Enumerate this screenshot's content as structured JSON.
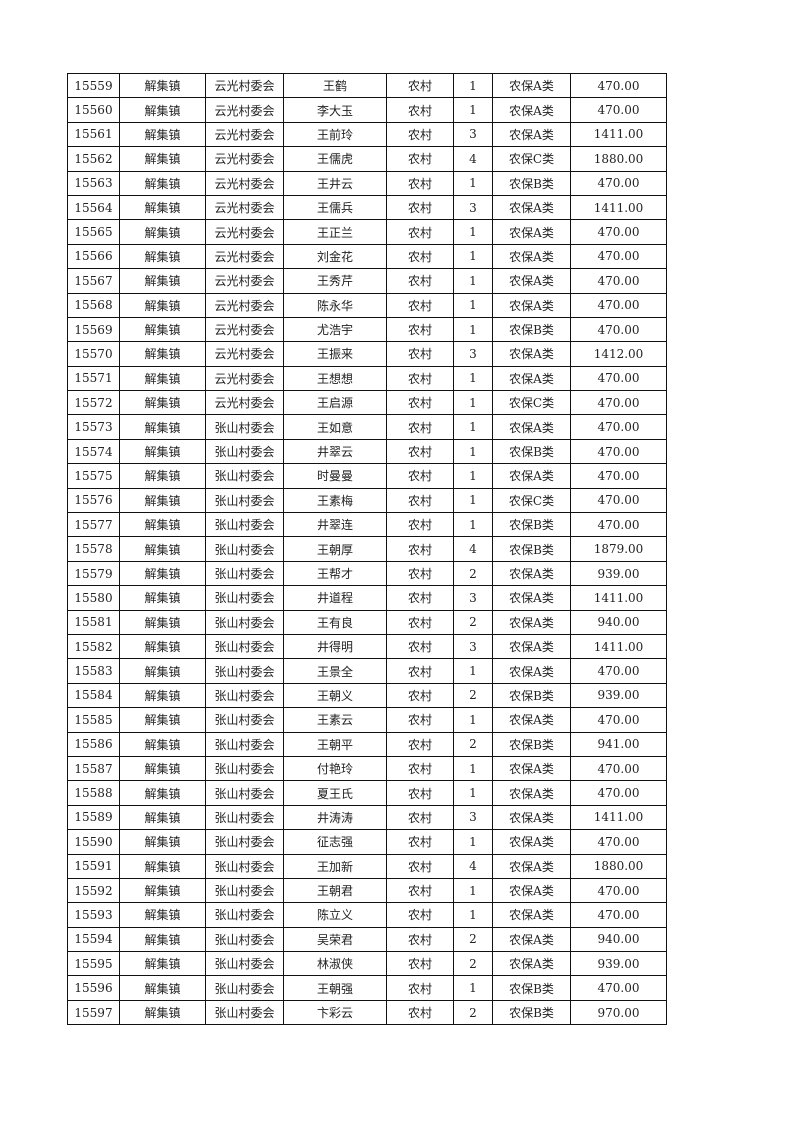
{
  "rows": [
    [
      "15559",
      "解集镇",
      "云光村委会",
      "王鹤",
      "农村",
      "1",
      "农保A类",
      "470.00"
    ],
    [
      "15560",
      "解集镇",
      "云光村委会",
      "李大玉",
      "农村",
      "1",
      "农保A类",
      "470.00"
    ],
    [
      "15561",
      "解集镇",
      "云光村委会",
      "王前玲",
      "农村",
      "3",
      "农保A类",
      "1411.00"
    ],
    [
      "15562",
      "解集镇",
      "云光村委会",
      "王儒虎",
      "农村",
      "4",
      "农保C类",
      "1880.00"
    ],
    [
      "15563",
      "解集镇",
      "云光村委会",
      "王井云",
      "农村",
      "1",
      "农保B类",
      "470.00"
    ],
    [
      "15564",
      "解集镇",
      "云光村委会",
      "王儒兵",
      "农村",
      "3",
      "农保A类",
      "1411.00"
    ],
    [
      "15565",
      "解集镇",
      "云光村委会",
      "王正兰",
      "农村",
      "1",
      "农保A类",
      "470.00"
    ],
    [
      "15566",
      "解集镇",
      "云光村委会",
      "刘金花",
      "农村",
      "1",
      "农保A类",
      "470.00"
    ],
    [
      "15567",
      "解集镇",
      "云光村委会",
      "王秀芹",
      "农村",
      "1",
      "农保A类",
      "470.00"
    ],
    [
      "15568",
      "解集镇",
      "云光村委会",
      "陈永华",
      "农村",
      "1",
      "农保A类",
      "470.00"
    ],
    [
      "15569",
      "解集镇",
      "云光村委会",
      "尤浩宇",
      "农村",
      "1",
      "农保B类",
      "470.00"
    ],
    [
      "15570",
      "解集镇",
      "云光村委会",
      "王振来",
      "农村",
      "3",
      "农保A类",
      "1412.00"
    ],
    [
      "15571",
      "解集镇",
      "云光村委会",
      "王想想",
      "农村",
      "1",
      "农保A类",
      "470.00"
    ],
    [
      "15572",
      "解集镇",
      "云光村委会",
      "王启源",
      "农村",
      "1",
      "农保C类",
      "470.00"
    ],
    [
      "15573",
      "解集镇",
      "张山村委会",
      "王如意",
      "农村",
      "1",
      "农保A类",
      "470.00"
    ],
    [
      "15574",
      "解集镇",
      "张山村委会",
      "井翠云",
      "农村",
      "1",
      "农保B类",
      "470.00"
    ],
    [
      "15575",
      "解集镇",
      "张山村委会",
      "时曼曼",
      "农村",
      "1",
      "农保A类",
      "470.00"
    ],
    [
      "15576",
      "解集镇",
      "张山村委会",
      "王素梅",
      "农村",
      "1",
      "农保C类",
      "470.00"
    ],
    [
      "15577",
      "解集镇",
      "张山村委会",
      "井翠连",
      "农村",
      "1",
      "农保B类",
      "470.00"
    ],
    [
      "15578",
      "解集镇",
      "张山村委会",
      "王朝厚",
      "农村",
      "4",
      "农保B类",
      "1879.00"
    ],
    [
      "15579",
      "解集镇",
      "张山村委会",
      "王帮才",
      "农村",
      "2",
      "农保A类",
      "939.00"
    ],
    [
      "15580",
      "解集镇",
      "张山村委会",
      "井道程",
      "农村",
      "3",
      "农保A类",
      "1411.00"
    ],
    [
      "15581",
      "解集镇",
      "张山村委会",
      "王有良",
      "农村",
      "2",
      "农保A类",
      "940.00"
    ],
    [
      "15582",
      "解集镇",
      "张山村委会",
      "井得明",
      "农村",
      "3",
      "农保A类",
      "1411.00"
    ],
    [
      "15583",
      "解集镇",
      "张山村委会",
      "王景全",
      "农村",
      "1",
      "农保A类",
      "470.00"
    ],
    [
      "15584",
      "解集镇",
      "张山村委会",
      "王朝义",
      "农村",
      "2",
      "农保B类",
      "939.00"
    ],
    [
      "15585",
      "解集镇",
      "张山村委会",
      "王素云",
      "农村",
      "1",
      "农保A类",
      "470.00"
    ],
    [
      "15586",
      "解集镇",
      "张山村委会",
      "王朝平",
      "农村",
      "2",
      "农保B类",
      "941.00"
    ],
    [
      "15587",
      "解集镇",
      "张山村委会",
      "付艳玲",
      "农村",
      "1",
      "农保A类",
      "470.00"
    ],
    [
      "15588",
      "解集镇",
      "张山村委会",
      "夏王氏",
      "农村",
      "1",
      "农保A类",
      "470.00"
    ],
    [
      "15589",
      "解集镇",
      "张山村委会",
      "井涛涛",
      "农村",
      "3",
      "农保A类",
      "1411.00"
    ],
    [
      "15590",
      "解集镇",
      "张山村委会",
      "征志强",
      "农村",
      "1",
      "农保A类",
      "470.00"
    ],
    [
      "15591",
      "解集镇",
      "张山村委会",
      "王加新",
      "农村",
      "4",
      "农保A类",
      "1880.00"
    ],
    [
      "15592",
      "解集镇",
      "张山村委会",
      "王朝君",
      "农村",
      "1",
      "农保A类",
      "470.00"
    ],
    [
      "15593",
      "解集镇",
      "张山村委会",
      "陈立义",
      "农村",
      "1",
      "农保A类",
      "470.00"
    ],
    [
      "15594",
      "解集镇",
      "张山村委会",
      "吴荣君",
      "农村",
      "2",
      "农保A类",
      "940.00"
    ],
    [
      "15595",
      "解集镇",
      "张山村委会",
      "林淑侠",
      "农村",
      "2",
      "农保A类",
      "939.00"
    ],
    [
      "15596",
      "解集镇",
      "张山村委会",
      "王朝强",
      "农村",
      "1",
      "农保B类",
      "470.00"
    ],
    [
      "15597",
      "解集镇",
      "张山村委会",
      "卞彩云",
      "农村",
      "2",
      "农保B类",
      "970.00"
    ]
  ]
}
